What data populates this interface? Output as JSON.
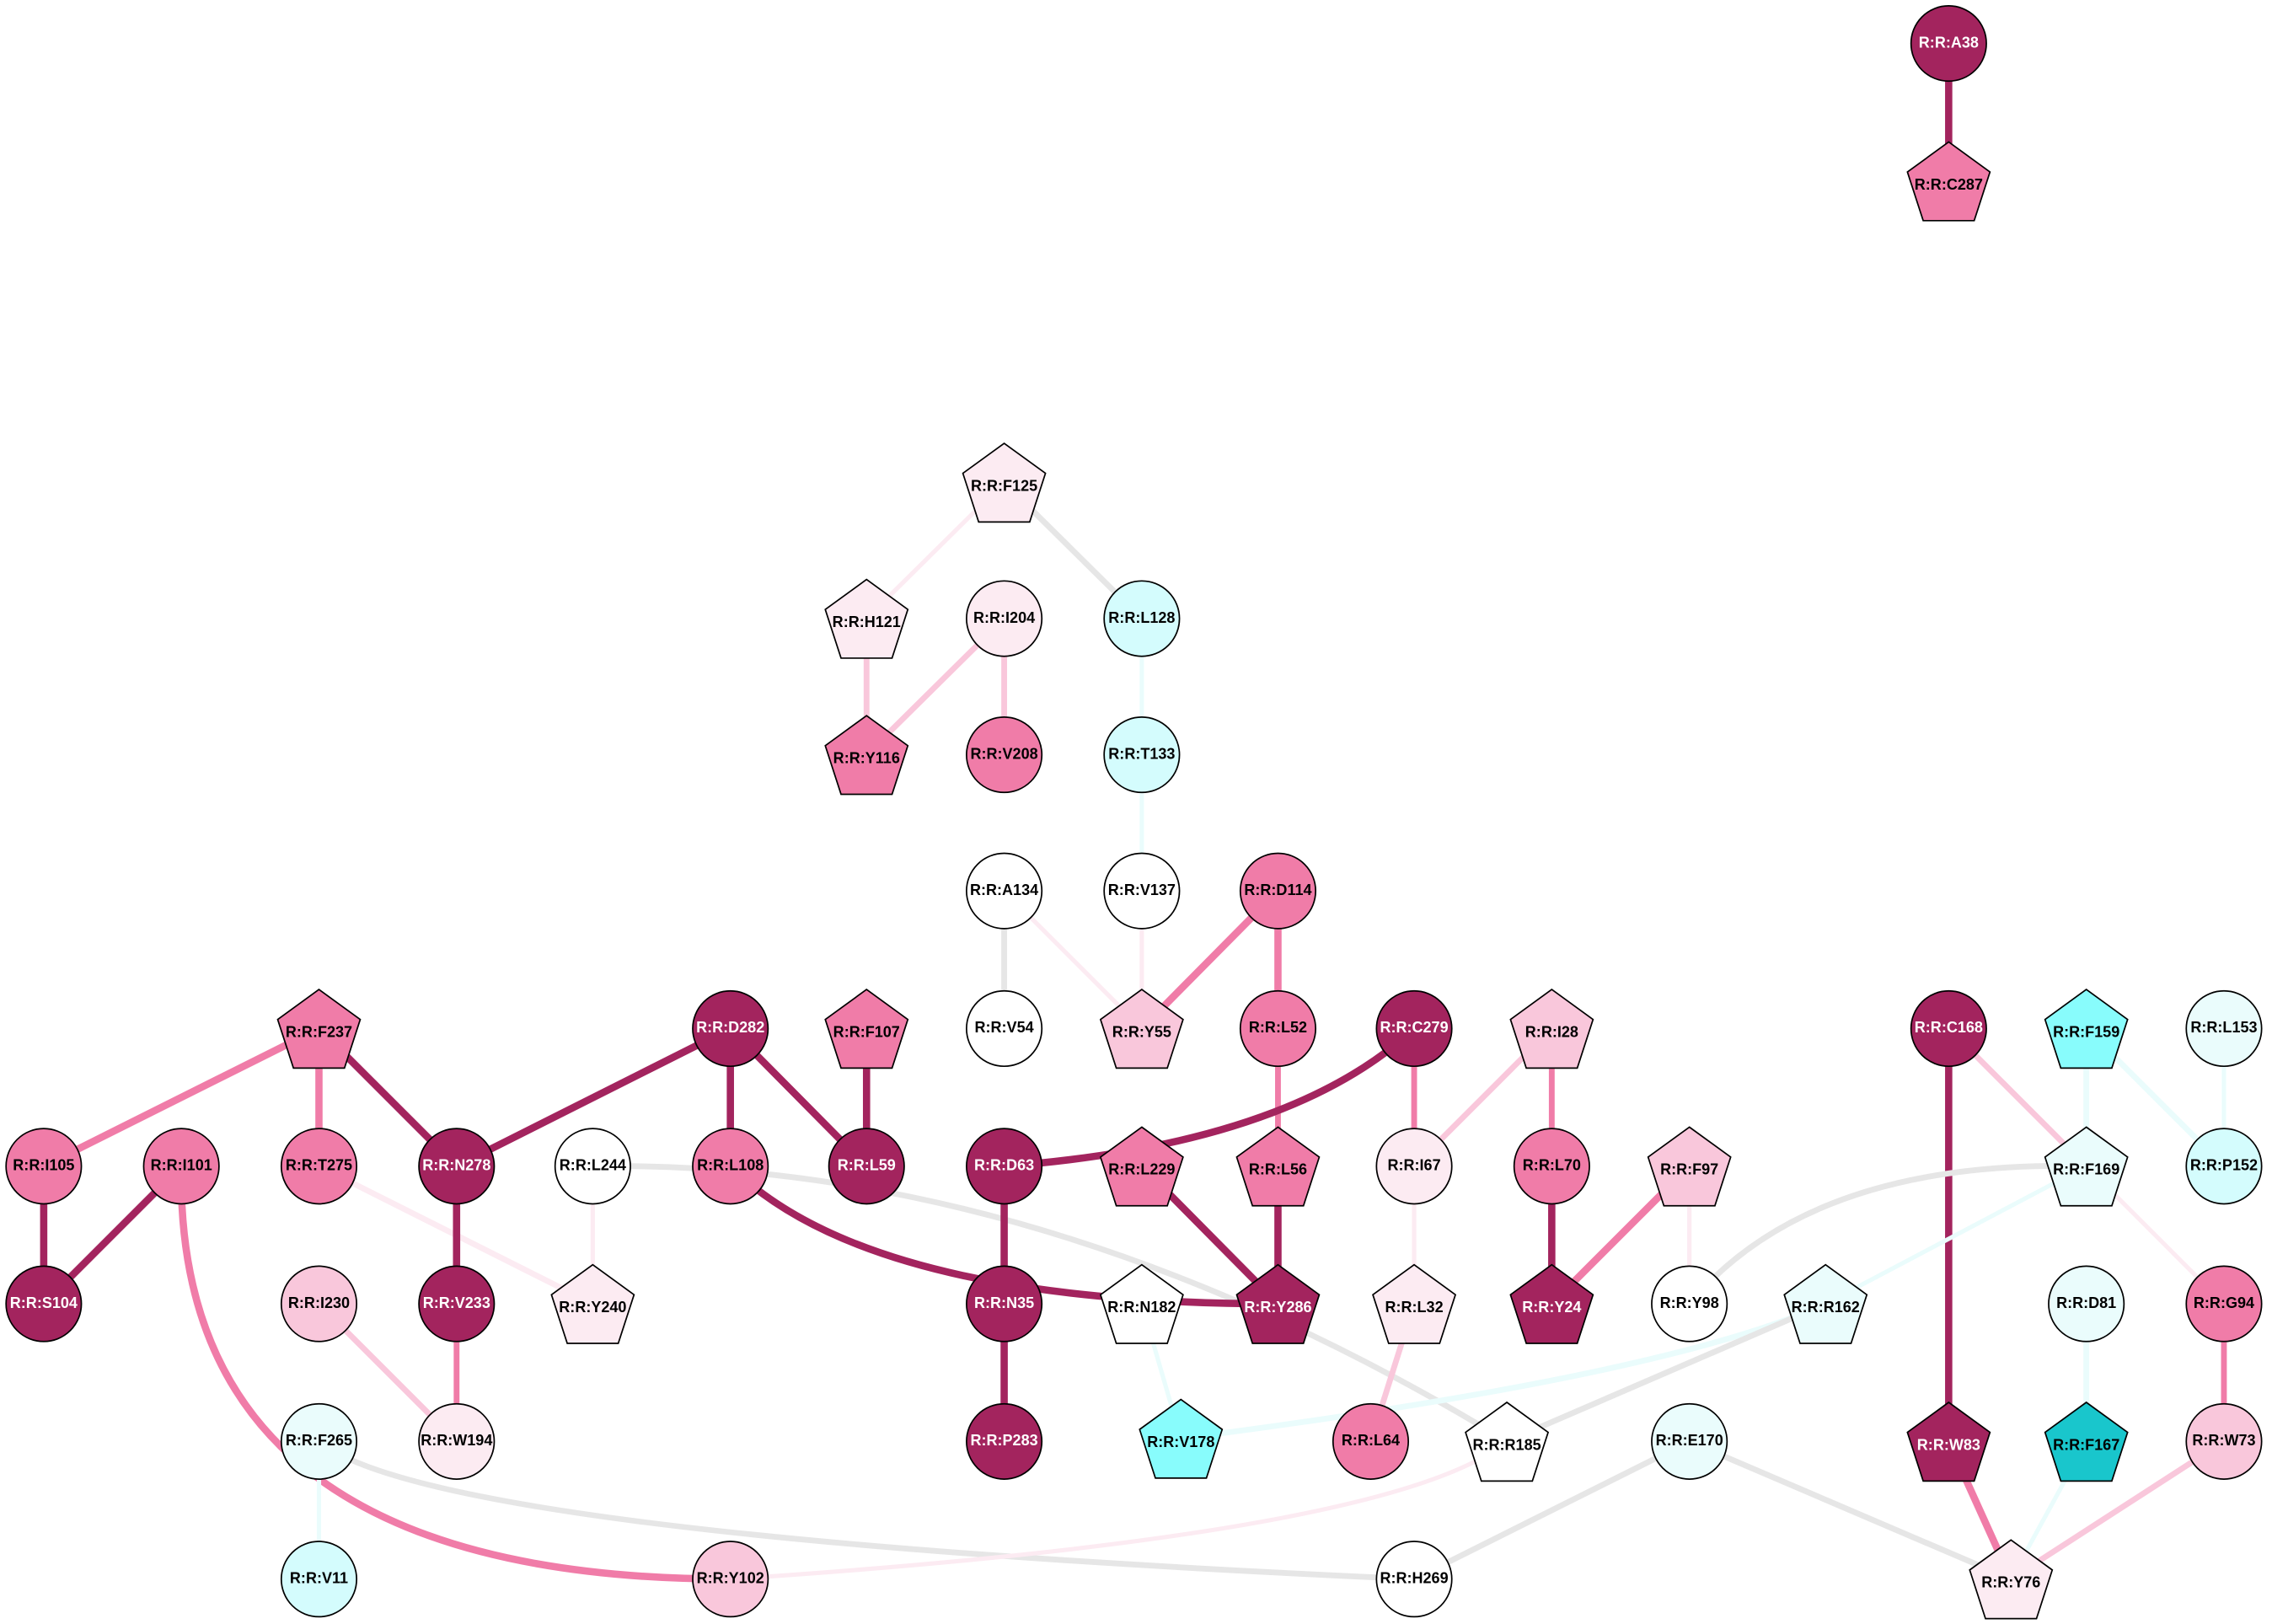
{
  "nodes": [
    {
      "label": "R:R:A38"
    },
    {
      "label": "R:R:C287"
    },
    {
      "label": "R:R:F125"
    },
    {
      "label": "R:R:H121"
    },
    {
      "label": "R:R:I204"
    },
    {
      "label": "R:R:L128"
    },
    {
      "label": "R:R:Y116"
    },
    {
      "label": "R:R:V208"
    },
    {
      "label": "R:R:T133"
    },
    {
      "label": "R:R:A134"
    },
    {
      "label": "R:R:V137"
    },
    {
      "label": "R:R:D114"
    },
    {
      "label": "R:R:V54"
    },
    {
      "label": "R:R:Y55"
    },
    {
      "label": "R:R:L52"
    },
    {
      "label": "R:R:F237"
    },
    {
      "label": "R:R:D282"
    },
    {
      "label": "R:R:F107"
    },
    {
      "label": "R:R:C279"
    },
    {
      "label": "R:R:I28"
    },
    {
      "label": "R:R:C168"
    },
    {
      "label": "R:R:F159"
    },
    {
      "label": "R:R:L153"
    },
    {
      "label": "R:R:I105"
    },
    {
      "label": "R:R:I101"
    },
    {
      "label": "R:R:T275"
    },
    {
      "label": "R:R:N278"
    },
    {
      "label": "R:R:L244"
    },
    {
      "label": "R:R:L108"
    },
    {
      "label": "R:R:L59"
    },
    {
      "label": "R:R:D63"
    },
    {
      "label": "R:R:L229"
    },
    {
      "label": "R:R:L56"
    },
    {
      "label": "R:R:I67"
    },
    {
      "label": "R:R:L70"
    },
    {
      "label": "R:R:F97"
    },
    {
      "label": "R:R:F169"
    },
    {
      "label": "R:R:P152"
    },
    {
      "label": "R:R:S104"
    },
    {
      "label": "R:R:I230"
    },
    {
      "label": "R:R:V233"
    },
    {
      "label": "R:R:Y240"
    },
    {
      "label": "R:R:N35"
    },
    {
      "label": "R:R:N182"
    },
    {
      "label": "R:R:Y286"
    },
    {
      "label": "R:R:L32"
    },
    {
      "label": "R:R:Y24"
    },
    {
      "label": "R:R:Y98"
    },
    {
      "label": "R:R:R162"
    },
    {
      "label": "R:R:D81"
    },
    {
      "label": "R:R:G94"
    },
    {
      "label": "R:R:F265"
    },
    {
      "label": "R:R:W194"
    },
    {
      "label": "R:R:P283"
    },
    {
      "label": "R:R:V178"
    },
    {
      "label": "R:R:L64"
    },
    {
      "label": "R:R:R185"
    },
    {
      "label": "R:R:E170"
    },
    {
      "label": "R:R:W83"
    },
    {
      "label": "R:R:F167"
    },
    {
      "label": "R:R:W73"
    },
    {
      "label": "R:R:V11"
    },
    {
      "label": "R:R:Y102"
    },
    {
      "label": "R:R:H269"
    },
    {
      "label": "R:R:Y76"
    }
  ]
}
